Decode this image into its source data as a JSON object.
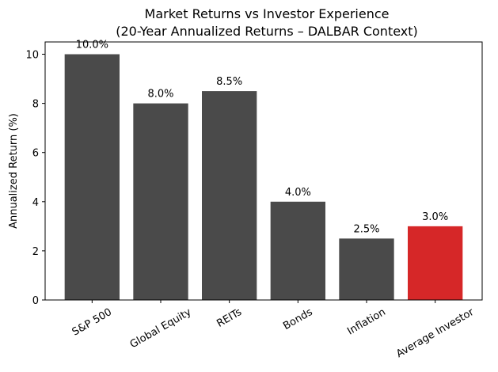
{
  "chart_data": {
    "type": "bar",
    "title": "Market Returns vs Investor Experience",
    "subtitle": "(20-Year Annualized Returns – DALBAR Context)",
    "ylabel": "Annualized Return (%)",
    "categories": [
      "S&P 500",
      "Global Equity",
      "REITs",
      "Bonds",
      "Inflation",
      "Average Investor"
    ],
    "values": [
      10.0,
      8.0,
      8.5,
      4.0,
      2.5,
      3.0
    ],
    "value_labels": [
      "10.0%",
      "8.0%",
      "8.5%",
      "4.0%",
      "2.5%",
      "3.0%"
    ],
    "colors": [
      "#4a4a4a",
      "#4a4a4a",
      "#4a4a4a",
      "#4a4a4a",
      "#4a4a4a",
      "#d62728"
    ],
    "ylim": [
      0,
      10.5
    ],
    "yticks": [
      0,
      2,
      4,
      6,
      8,
      10
    ],
    "grid": false
  }
}
